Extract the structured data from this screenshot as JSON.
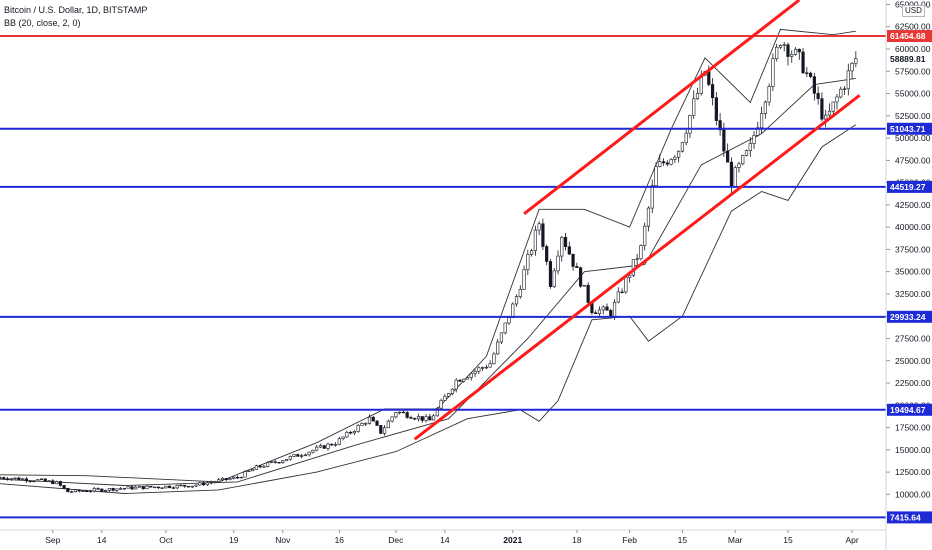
{
  "legend": {
    "symbol": "Bitcoin / U.S. Dollar, 1D, BITSTAMP",
    "indicator": "BB (20, close, 2, 0)"
  },
  "currency_badge": "USD",
  "colors": {
    "horizontal_red": "#e53935",
    "horizontal_blue": "#1e2ad6",
    "channel": "#ff1a1a",
    "candle": "#131722",
    "band": "#333333"
  },
  "chart_data": {
    "type": "line",
    "y_scale": "linear",
    "ylim": [
      6000,
      65500
    ],
    "y_ticks": [
      10000,
      12500,
      15000,
      17500,
      20000,
      22500,
      25000,
      27500,
      30000,
      32500,
      35000,
      37500,
      40000,
      42500,
      45000,
      47500,
      50000,
      52500,
      55000,
      57500,
      60000,
      62500,
      65000
    ],
    "y_tick_labels": [
      "10000.00",
      "12500.00",
      "15000.00",
      "17500.00",
      "20000.00",
      "22500.00",
      "25000.00",
      "27500.00",
      "30000.00",
      "32500.00",
      "35000.00",
      "37500.00",
      "40000.00",
      "42500.00",
      "45000.00",
      "47500.00",
      "50000.00",
      "52500.00",
      "55000.00",
      "57500.00",
      "60000.00",
      "62500.00",
      "65000.00"
    ],
    "x_range": [
      "2020-08-18",
      "2021-04-10"
    ],
    "x_ticks": [
      {
        "date": "2020-09-01",
        "label": "Sep"
      },
      {
        "date": "2020-09-14",
        "label": "14"
      },
      {
        "date": "2020-10-01",
        "label": "Oct"
      },
      {
        "date": "2020-10-19",
        "label": "19"
      },
      {
        "date": "2020-11-01",
        "label": "Nov"
      },
      {
        "date": "2020-11-16",
        "label": "16"
      },
      {
        "date": "2020-12-01",
        "label": "Dec"
      },
      {
        "date": "2020-12-14",
        "label": "14"
      },
      {
        "date": "2021-01-01",
        "label": "2021"
      },
      {
        "date": "2021-01-18",
        "label": "18"
      },
      {
        "date": "2021-02-01",
        "label": "Feb"
      },
      {
        "date": "2021-02-15",
        "label": "15"
      },
      {
        "date": "2021-03-01",
        "label": "Mar"
      },
      {
        "date": "2021-03-15",
        "label": "15"
      },
      {
        "date": "2021-04-01",
        "label": "Apr"
      }
    ],
    "horizontal_levels": [
      {
        "value": 61454.68,
        "label": "61454.68",
        "color": "#e53935"
      },
      {
        "value": 51043.71,
        "label": "51043.71",
        "color": "#1e2ad6"
      },
      {
        "value": 44519.27,
        "label": "44519.27",
        "color": "#1e2ad6"
      },
      {
        "value": 29933.24,
        "label": "29933.24",
        "color": "#1e2ad6"
      },
      {
        "value": 19494.67,
        "label": "19494.67",
        "color": "#1e2ad6"
      },
      {
        "value": 7415.64,
        "label": "7415.64",
        "color": "#1e2ad6"
      }
    ],
    "last_price": {
      "value": 58889.81,
      "label": "58889.81"
    },
    "channel_lines": [
      {
        "from": {
          "date": "2021-01-04",
          "value": 41500
        },
        "to": {
          "date": "2021-03-18",
          "value": 65500
        }
      },
      {
        "from": {
          "date": "2020-12-06",
          "value": 16200
        },
        "to": {
          "date": "2021-04-03",
          "value": 54800
        }
      }
    ],
    "close_path": [
      {
        "date": "2020-08-18",
        "value": 11900
      },
      {
        "date": "2020-08-28",
        "value": 11600
      },
      {
        "date": "2020-09-02",
        "value": 11300
      },
      {
        "date": "2020-09-05",
        "value": 10300
      },
      {
        "date": "2020-09-20",
        "value": 10700
      },
      {
        "date": "2020-10-08",
        "value": 11000
      },
      {
        "date": "2020-10-20",
        "value": 11900
      },
      {
        "date": "2020-10-25",
        "value": 13000
      },
      {
        "date": "2020-11-05",
        "value": 14400
      },
      {
        "date": "2020-11-15",
        "value": 15800
      },
      {
        "date": "2020-11-24",
        "value": 18500
      },
      {
        "date": "2020-11-27",
        "value": 17000
      },
      {
        "date": "2020-12-01",
        "value": 19300
      },
      {
        "date": "2020-12-10",
        "value": 18300
      },
      {
        "date": "2020-12-17",
        "value": 22800
      },
      {
        "date": "2020-12-26",
        "value": 24700
      },
      {
        "date": "2021-01-02",
        "value": 32200
      },
      {
        "date": "2021-01-08",
        "value": 40500
      },
      {
        "date": "2021-01-11",
        "value": 33800
      },
      {
        "date": "2021-01-14",
        "value": 39200
      },
      {
        "date": "2021-01-22",
        "value": 30800
      },
      {
        "date": "2021-01-27",
        "value": 30400
      },
      {
        "date": "2021-02-04",
        "value": 37600
      },
      {
        "date": "2021-02-08",
        "value": 46500
      },
      {
        "date": "2021-02-14",
        "value": 48800
      },
      {
        "date": "2021-02-21",
        "value": 57500
      },
      {
        "date": "2021-02-28",
        "value": 45200
      },
      {
        "date": "2021-03-05",
        "value": 48800
      },
      {
        "date": "2021-03-13",
        "value": 61200
      },
      {
        "date": "2021-03-19",
        "value": 58200
      },
      {
        "date": "2021-03-25",
        "value": 51800
      },
      {
        "date": "2021-04-02",
        "value": 58900
      }
    ],
    "bollinger_upper": [
      {
        "date": "2020-08-18",
        "value": 12200
      },
      {
        "date": "2020-09-10",
        "value": 12100
      },
      {
        "date": "2020-10-15",
        "value": 11400
      },
      {
        "date": "2020-11-10",
        "value": 15800
      },
      {
        "date": "2020-11-28",
        "value": 19600
      },
      {
        "date": "2020-12-12",
        "value": 19600
      },
      {
        "date": "2020-12-25",
        "value": 25500
      },
      {
        "date": "2021-01-08",
        "value": 42000
      },
      {
        "date": "2021-01-20",
        "value": 42000
      },
      {
        "date": "2021-02-01",
        "value": 40000
      },
      {
        "date": "2021-02-12",
        "value": 51000
      },
      {
        "date": "2021-02-21",
        "value": 59000
      },
      {
        "date": "2021-03-05",
        "value": 54000
      },
      {
        "date": "2021-03-13",
        "value": 62200
      },
      {
        "date": "2021-03-27",
        "value": 61600
      },
      {
        "date": "2021-04-02",
        "value": 62000
      }
    ],
    "bollinger_mid": [
      {
        "date": "2020-08-18",
        "value": 11700
      },
      {
        "date": "2020-09-20",
        "value": 11000
      },
      {
        "date": "2020-10-20",
        "value": 11400
      },
      {
        "date": "2020-11-20",
        "value": 15500
      },
      {
        "date": "2020-12-15",
        "value": 18500
      },
      {
        "date": "2021-01-05",
        "value": 27500
      },
      {
        "date": "2021-01-20",
        "value": 35000
      },
      {
        "date": "2021-02-05",
        "value": 35800
      },
      {
        "date": "2021-02-20",
        "value": 47000
      },
      {
        "date": "2021-03-08",
        "value": 50500
      },
      {
        "date": "2021-03-22",
        "value": 56000
      },
      {
        "date": "2021-04-02",
        "value": 56700
      }
    ],
    "bollinger_lower": [
      {
        "date": "2020-08-18",
        "value": 11200
      },
      {
        "date": "2020-09-20",
        "value": 10100
      },
      {
        "date": "2020-10-15",
        "value": 10500
      },
      {
        "date": "2020-11-10",
        "value": 12500
      },
      {
        "date": "2020-12-01",
        "value": 14800
      },
      {
        "date": "2020-12-20",
        "value": 18500
      },
      {
        "date": "2021-01-03",
        "value": 19500
      },
      {
        "date": "2021-01-08",
        "value": 18200
      },
      {
        "date": "2021-01-13",
        "value": 20500
      },
      {
        "date": "2021-01-22",
        "value": 29600
      },
      {
        "date": "2021-02-01",
        "value": 30000
      },
      {
        "date": "2021-02-06",
        "value": 27200
      },
      {
        "date": "2021-02-15",
        "value": 30000
      },
      {
        "date": "2021-02-28",
        "value": 41800
      },
      {
        "date": "2021-03-08",
        "value": 44000
      },
      {
        "date": "2021-03-15",
        "value": 43000
      },
      {
        "date": "2021-03-24",
        "value": 49000
      },
      {
        "date": "2021-04-02",
        "value": 51500
      }
    ]
  }
}
